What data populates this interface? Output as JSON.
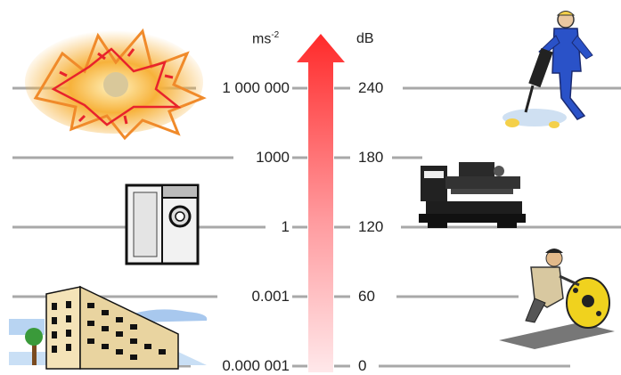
{
  "scale": {
    "left_unit": "ms",
    "left_unit_exponent": "-2",
    "right_unit": "dB",
    "levels": [
      {
        "ms": "1 000 000",
        "db": "240"
      },
      {
        "ms": "1000",
        "db": "180"
      },
      {
        "ms": "1",
        "db": "120"
      },
      {
        "ms": "0.001",
        "db": "60"
      },
      {
        "ms": "0.000 001",
        "db": "0"
      }
    ]
  },
  "colors": {
    "arrow_top": "#ff2a2a",
    "arrow_bottom": "#ffe8ea",
    "gridline": "#a8a8a8"
  },
  "illustrations": [
    "explosion",
    "jackhammer-worker",
    "washing-machine",
    "lathe",
    "apartment-building",
    "floor-sander-worker"
  ]
}
